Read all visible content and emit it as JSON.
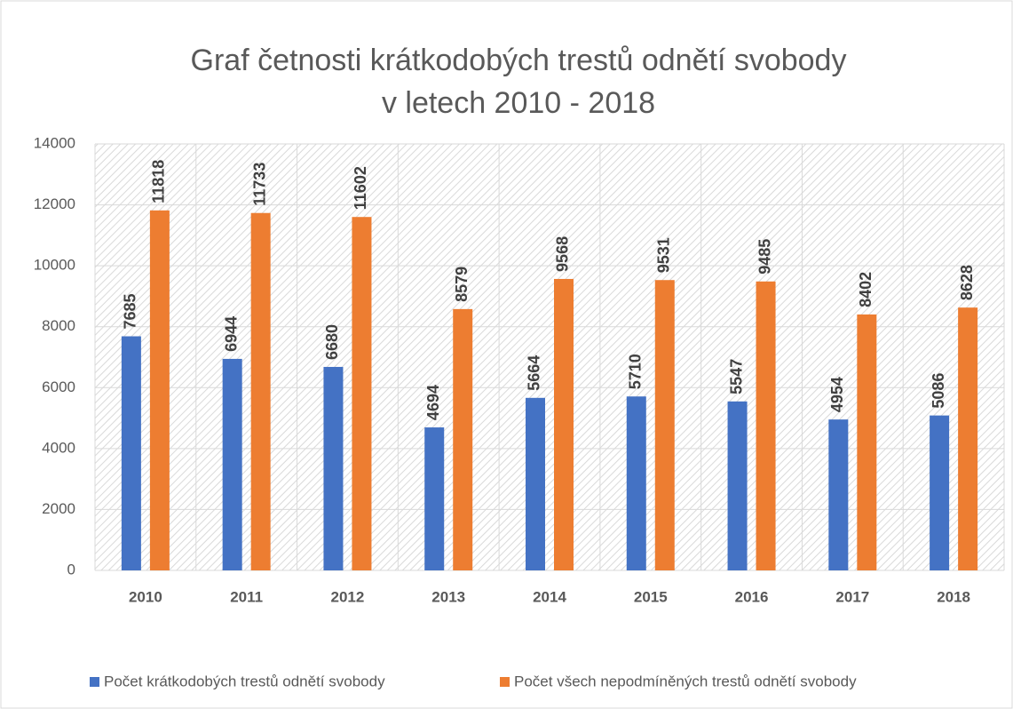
{
  "chart_data": {
    "type": "bar",
    "title": [
      "Graf četnosti krátkodobých trestů odnětí svobody",
      "v letech 2010 - 2018"
    ],
    "categories": [
      "2010",
      "2011",
      "2012",
      "2013",
      "2014",
      "2015",
      "2016",
      "2017",
      "2018"
    ],
    "series": [
      {
        "name": "Počet krátkodobých trestů odnětí svobody",
        "color": "#4472c4",
        "values": [
          7685,
          6944,
          6680,
          4694,
          5664,
          5710,
          5547,
          4954,
          5086
        ]
      },
      {
        "name": "Počet všech nepodmíněných trestů odnětí svobody",
        "color": "#ed7d31",
        "values": [
          11818,
          11733,
          11602,
          8579,
          9568,
          9531,
          9485,
          8402,
          8628
        ]
      }
    ],
    "ylim": [
      0,
      14000
    ],
    "yticks": [
      0,
      2000,
      4000,
      6000,
      8000,
      10000,
      12000,
      14000
    ],
    "grid": true,
    "legend": "bottom"
  }
}
